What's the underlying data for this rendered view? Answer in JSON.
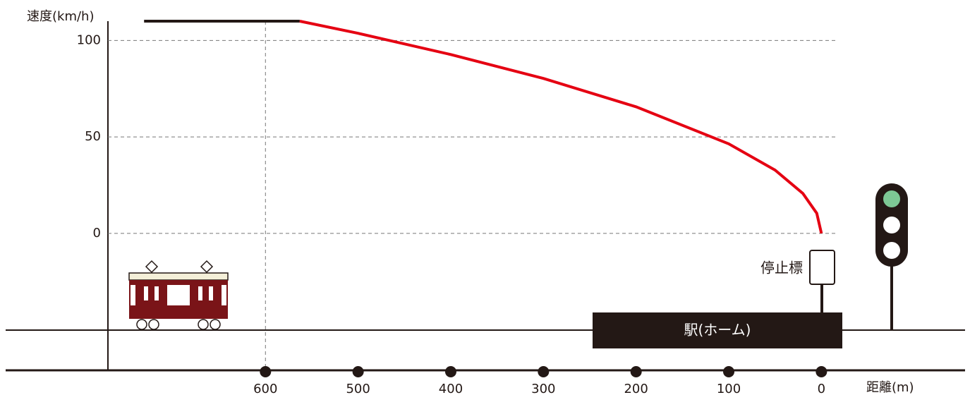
{
  "chart_data": {
    "type": "line",
    "y_label": "速度(km/h)",
    "x_label": "距離(m)",
    "annotations": {
      "stop_marker": "停止標",
      "station": "駅(ホーム)"
    },
    "xlim": [
      770,
      -18
    ],
    "ylim": [
      -71,
      110
    ],
    "xticks": [
      600,
      500,
      400,
      300,
      200,
      100,
      0
    ],
    "yticks": [
      0,
      50,
      100
    ],
    "xgrid_at": [
      600
    ],
    "grid": true,
    "series": [
      {
        "color": "#231815",
        "x": [
          731,
          563
        ],
        "values": [
          110,
          110
        ]
      },
      {
        "color": "#e50012",
        "x": [
          563,
          500,
          400,
          300,
          200,
          100,
          50,
          20,
          5,
          0
        ],
        "values": [
          110,
          103.7,
          92.7,
          80.3,
          65.6,
          46.4,
          32.8,
          20.7,
          10.4,
          0
        ]
      }
    ]
  }
}
